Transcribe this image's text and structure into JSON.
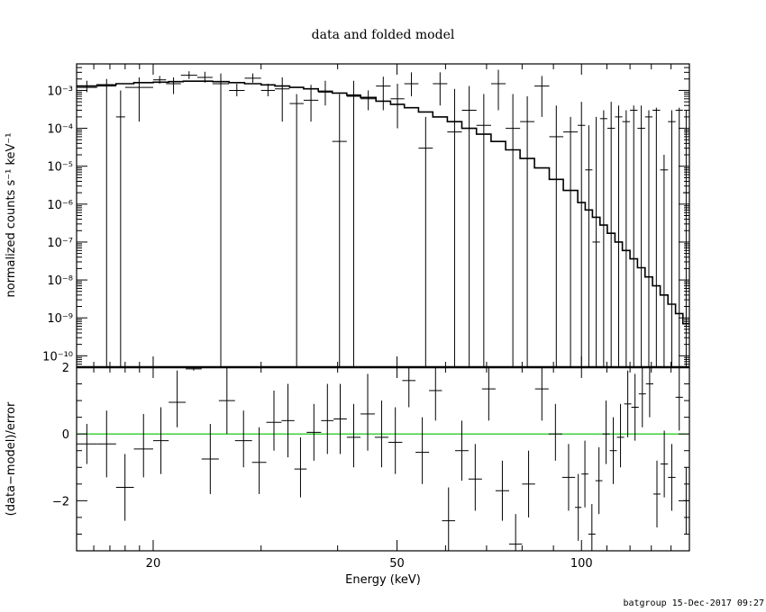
{
  "title": "data and folded model",
  "footer": "batgroup 15-Dec-2017 09:27",
  "colors": {
    "data": "#000000",
    "model": "#000000",
    "zero_line": "#00c000",
    "frame": "#000000"
  },
  "chart_data": [
    {
      "type": "line",
      "panel": "top",
      "xscale": "log",
      "yscale": "log",
      "xlim": [
        15,
        150
      ],
      "ylim": [
        5e-11,
        0.005
      ],
      "xlabel": "",
      "ylabel": "normalized counts s⁻¹ keV⁻¹",
      "ytick_values": [
        1e-10,
        1e-09,
        1e-08,
        1e-07,
        1e-06,
        1e-05,
        0.0001,
        0.001
      ],
      "ytick_labels": [
        "10⁻¹⁰",
        "10⁻⁹",
        "10⁻⁸",
        "10⁻⁷",
        "10⁻⁶",
        "10⁻⁵",
        "10⁻⁴",
        "10⁻³"
      ],
      "data_points": [
        [
          15.0,
          16.2,
          0.0012,
          0.0009,
          0.0018
        ],
        [
          16.2,
          17.4,
          0.0013,
          0,
          0.002
        ],
        [
          17.4,
          18.0,
          0.0002,
          0,
          0.001
        ],
        [
          18.0,
          20.0,
          0.0012,
          0.00015,
          0.0022
        ],
        [
          20.0,
          21.0,
          0.0019,
          0.0015,
          0.0024
        ],
        [
          21.0,
          22.2,
          0.0015,
          0.0008,
          0.0022
        ],
        [
          22.2,
          23.6,
          0.0025,
          0.002,
          0.0032
        ],
        [
          23.6,
          25.0,
          0.0022,
          0.0016,
          0.0031
        ],
        [
          25.0,
          26.6,
          0.0015,
          0,
          0.0028
        ],
        [
          26.6,
          28.2,
          0.001,
          0.0007,
          0.0015
        ],
        [
          28.2,
          30.0,
          0.0021,
          0.0016,
          0.0028
        ],
        [
          30.0,
          31.6,
          0.001,
          0.0007,
          0.0015
        ],
        [
          31.6,
          33.4,
          0.0011,
          0.00015,
          0.0022
        ],
        [
          33.4,
          35.2,
          0.00045,
          0,
          0.0008
        ],
        [
          35.2,
          37.2,
          0.00055,
          0.00015,
          0.0014
        ],
        [
          37.2,
          39.2,
          0.0009,
          0.0004,
          0.0018
        ],
        [
          39.2,
          41.4,
          4.5e-05,
          0,
          0.0008
        ],
        [
          41.4,
          43.6,
          0.0007,
          0,
          0.0018
        ],
        [
          43.6,
          46.2,
          0.0006,
          0.0003,
          0.001
        ],
        [
          46.2,
          48.8,
          0.0013,
          0.0003,
          0.0023
        ],
        [
          48.8,
          51.4,
          0.0006,
          0.0001,
          0.0015
        ],
        [
          51.4,
          54.2,
          0.0015,
          0.0007,
          0.003
        ],
        [
          54.2,
          57.2,
          3e-05,
          0,
          0.0002
        ],
        [
          57.2,
          60.4,
          0.0015,
          0.0004,
          0.003
        ],
        [
          60.4,
          63.8,
          8e-05,
          0,
          0.0011
        ],
        [
          63.8,
          67.4,
          0.0003,
          0,
          0.0013
        ],
        [
          67.4,
          71.2,
          0.00012,
          0,
          0.0008
        ],
        [
          71.2,
          75.2,
          0.0015,
          0.0003,
          0.0035
        ],
        [
          75.2,
          79.4,
          0.0001,
          0,
          0.0008
        ],
        [
          79.4,
          83.8,
          0.00015,
          0,
          0.0007
        ],
        [
          83.8,
          88.6,
          0.0013,
          0.0002,
          0.0024
        ],
        [
          88.6,
          93.4,
          6e-05,
          0,
          0.0004
        ],
        [
          93.4,
          98.6,
          8e-05,
          0,
          0.0002
        ],
        [
          98.6,
          101.4,
          0.00012,
          0,
          0.0005
        ],
        [
          101.4,
          104.2,
          8e-06,
          0,
          0.00012
        ],
        [
          104.2,
          107.2,
          1e-07,
          0,
          0.0002
        ],
        [
          107.2,
          110.2,
          0.00018,
          0,
          0.0003
        ],
        [
          110.2,
          113.4,
          0.0001,
          0,
          0.0005
        ],
        [
          113.4,
          116.6,
          0.0002,
          0,
          0.0004
        ],
        [
          116.6,
          120.0,
          0.00015,
          0,
          0.0003
        ],
        [
          120.0,
          123.4,
          0.0003,
          0,
          0.0004
        ],
        [
          123.4,
          127.0,
          0.0001,
          0,
          0.0004
        ],
        [
          127.0,
          130.6,
          0.0002,
          0,
          0.0003
        ],
        [
          130.6,
          134.4,
          0.0003,
          0,
          0.00035
        ],
        [
          134.4,
          138.4,
          8e-06,
          0,
          2e-05
        ],
        [
          138.4,
          142.4,
          0.00015,
          0,
          0.0003
        ],
        [
          142.4,
          146.4,
          0.0003,
          0,
          0.00035
        ],
        [
          146.4,
          150.0,
          2e-06,
          0,
          0.0003
        ]
      ],
      "model_steps": [
        [
          15.0,
          0.0013
        ],
        [
          16.2,
          0.0014
        ],
        [
          17.4,
          0.0015
        ],
        [
          18.6,
          0.0016
        ],
        [
          20.0,
          0.00165
        ],
        [
          21.2,
          0.0017
        ],
        [
          22.4,
          0.00175
        ],
        [
          23.6,
          0.00175
        ],
        [
          25.0,
          0.0017
        ],
        [
          26.6,
          0.0016
        ],
        [
          28.2,
          0.0015
        ],
        [
          30.0,
          0.0014
        ],
        [
          31.6,
          0.0013
        ],
        [
          33.4,
          0.0012
        ],
        [
          35.2,
          0.0011
        ],
        [
          37.2,
          0.00095
        ],
        [
          39.2,
          0.00085
        ],
        [
          41.4,
          0.00075
        ],
        [
          43.6,
          0.00065
        ],
        [
          46.2,
          0.00052
        ],
        [
          48.8,
          0.00043
        ],
        [
          51.4,
          0.00035
        ],
        [
          54.2,
          0.00027
        ],
        [
          57.2,
          0.0002
        ],
        [
          60.4,
          0.00015
        ],
        [
          63.8,
          0.0001
        ],
        [
          67.4,
          7e-05
        ],
        [
          71.2,
          4.5e-05
        ],
        [
          75.2,
          2.7e-05
        ],
        [
          79.4,
          1.6e-05
        ],
        [
          83.8,
          9e-06
        ],
        [
          88.6,
          4.5e-06
        ],
        [
          93.4,
          2.3e-06
        ],
        [
          98.6,
          1.1e-06
        ],
        [
          101.4,
          7e-07
        ],
        [
          104.2,
          4.5e-07
        ],
        [
          107.2,
          2.8e-07
        ],
        [
          110.2,
          1.7e-07
        ],
        [
          113.4,
          1e-07
        ],
        [
          116.6,
          6e-08
        ],
        [
          120.0,
          3.6e-08
        ],
        [
          123.4,
          2.1e-08
        ],
        [
          127.0,
          1.2e-08
        ],
        [
          130.6,
          7e-09
        ],
        [
          134.4,
          4e-09
        ],
        [
          138.4,
          2.3e-09
        ],
        [
          142.4,
          1.3e-09
        ],
        [
          146.4,
          7e-10
        ],
        [
          150.0,
          7e-10
        ]
      ]
    },
    {
      "type": "scatter",
      "panel": "bottom",
      "xscale": "log",
      "yscale": "linear",
      "xlim": [
        15,
        150
      ],
      "ylim": [
        -3.5,
        2
      ],
      "xlabel": "Energy (keV)",
      "ylabel": "(data−model)/error",
      "xtick_values": [
        20,
        50,
        100
      ],
      "xtick_labels": [
        "20",
        "50",
        "100"
      ],
      "ytick_values": [
        -2,
        0,
        2
      ],
      "ytick_labels": [
        "−2",
        "0",
        "2"
      ],
      "zero_line": 0,
      "residuals": [
        [
          15.0,
          16.2,
          -0.3,
          -0.9,
          0.3
        ],
        [
          16.2,
          17.4,
          -0.3,
          -1.3,
          0.7
        ],
        [
          17.4,
          18.6,
          -1.6,
          -2.6,
          -0.6
        ],
        [
          18.6,
          20.0,
          -0.45,
          -1.3,
          0.6
        ],
        [
          20.0,
          21.2,
          -0.2,
          -1.2,
          0.8
        ],
        [
          21.2,
          22.6,
          0.95,
          0.2,
          1.9
        ],
        [
          22.6,
          24.0,
          1.95,
          1.9,
          2.0
        ],
        [
          24.0,
          25.6,
          -0.75,
          -1.8,
          0.3
        ],
        [
          25.6,
          27.2,
          1.0,
          0.0,
          2.0
        ],
        [
          27.2,
          29.0,
          -0.2,
          -1.0,
          0.7
        ],
        [
          29.0,
          30.6,
          -0.85,
          -1.8,
          0.2
        ],
        [
          30.6,
          32.4,
          0.35,
          -0.5,
          1.3
        ],
        [
          32.4,
          34.0,
          0.4,
          -0.7,
          1.5
        ],
        [
          34.0,
          35.6,
          -1.05,
          -1.9,
          -0.1
        ],
        [
          35.6,
          37.6,
          0.05,
          -0.8,
          0.9
        ],
        [
          37.6,
          39.4,
          0.4,
          -0.6,
          1.5
        ],
        [
          39.4,
          41.4,
          0.45,
          -0.6,
          1.5
        ],
        [
          41.4,
          43.6,
          -0.1,
          -1.0,
          0.9
        ],
        [
          43.6,
          46.0,
          0.6,
          -0.5,
          1.8
        ],
        [
          46.0,
          48.4,
          -0.1,
          -1.0,
          1.0
        ],
        [
          48.4,
          51.0,
          -0.25,
          -1.2,
          0.8
        ],
        [
          51.0,
          53.6,
          1.6,
          0.8,
          2.0
        ],
        [
          53.6,
          56.4,
          -0.55,
          -1.5,
          0.5
        ],
        [
          56.4,
          59.2,
          1.3,
          0.4,
          2.0
        ],
        [
          59.2,
          62.2,
          -2.6,
          -3.5,
          -1.6
        ],
        [
          62.2,
          65.4,
          -0.5,
          -1.4,
          0.4
        ],
        [
          65.4,
          68.8,
          -1.35,
          -2.3,
          -0.3
        ],
        [
          68.8,
          72.4,
          1.35,
          0.4,
          2.0
        ],
        [
          72.4,
          76.2,
          -1.7,
          -2.6,
          -0.8
        ],
        [
          76.2,
          80.0,
          -3.3,
          -3.5,
          -2.4
        ],
        [
          80.0,
          84.0,
          -1.5,
          -2.5,
          -0.5
        ],
        [
          84.0,
          88.4,
          1.35,
          0.4,
          2.0
        ],
        [
          88.4,
          93.0,
          0.0,
          -0.8,
          0.9
        ],
        [
          93.0,
          97.6,
          -1.3,
          -2.3,
          -0.3
        ],
        [
          97.6,
          100.0,
          -2.2,
          -3.2,
          -1.2
        ],
        [
          100.0,
          102.6,
          -1.2,
          -2.2,
          -0.2
        ],
        [
          102.6,
          105.4,
          -3.0,
          -3.5,
          -2.1
        ],
        [
          105.4,
          108.2,
          -1.4,
          -2.4,
          -0.4
        ],
        [
          108.2,
          111.2,
          0.0,
          -0.9,
          1.0
        ],
        [
          111.2,
          114.2,
          -0.5,
          -1.5,
          0.5
        ],
        [
          114.2,
          117.4,
          -0.1,
          -1.0,
          0.9
        ],
        [
          117.4,
          120.6,
          0.9,
          -0.1,
          1.9
        ],
        [
          120.6,
          124.0,
          0.8,
          -0.2,
          1.8
        ],
        [
          124.0,
          127.4,
          1.2,
          0.2,
          2.0
        ],
        [
          127.4,
          131.0,
          1.5,
          0.5,
          2.0
        ],
        [
          131.0,
          134.6,
          -1.8,
          -2.8,
          -0.8
        ],
        [
          134.6,
          138.4,
          -0.9,
          -1.9,
          0.1
        ],
        [
          138.4,
          142.4,
          -1.3,
          -2.3,
          -0.3
        ],
        [
          142.4,
          146.4,
          1.1,
          0.1,
          2.0
        ],
        [
          146.4,
          150.0,
          -2.0,
          -3.0,
          -1.0
        ]
      ]
    }
  ]
}
